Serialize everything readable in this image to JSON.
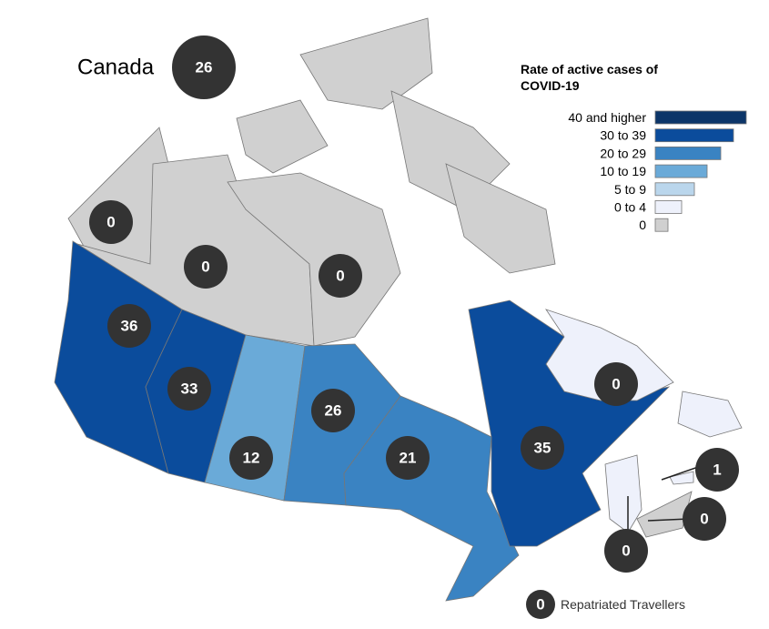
{
  "title": "Canada",
  "national_rate": 26,
  "legend": {
    "title_lines": [
      "Rate of active cases of",
      "COVID-19"
    ],
    "items": [
      {
        "label": "40 and higher",
        "color": "#0c3568"
      },
      {
        "label": "30 to 39",
        "color": "#0b4c9c"
      },
      {
        "label": "20 to 29",
        "color": "#3a83c2"
      },
      {
        "label": "10 to 19",
        "color": "#6aaad8"
      },
      {
        "label": "5 to 9",
        "color": "#bad6ec"
      },
      {
        "label": "0 to 4",
        "color": "#eef1fb"
      },
      {
        "label": "0",
        "color": "#d0d0d0"
      }
    ]
  },
  "regions": [
    {
      "value": 0,
      "color": "#d0d0d0"
    },
    {
      "value": 0,
      "color": "#d0d0d0"
    },
    {
      "value": 0,
      "color": "#d0d0d0"
    },
    {
      "value": 36,
      "color": "#0b4c9c"
    },
    {
      "value": 33,
      "color": "#0b4c9c"
    },
    {
      "value": 12,
      "color": "#6aaad8"
    },
    {
      "value": 26,
      "color": "#3a83c2"
    },
    {
      "value": 21,
      "color": "#3a83c2"
    },
    {
      "value": 35,
      "color": "#0b4c9c"
    },
    {
      "value": 0,
      "color": "#eef1fb"
    },
    {
      "value": 1,
      "color": "#eef1fb"
    },
    {
      "value": 0,
      "color": "#d0d0d0"
    },
    {
      "value": 0,
      "color": "#eef1fb"
    }
  ],
  "repatriated": {
    "value": 0,
    "label": "Repatriated Travellers"
  }
}
